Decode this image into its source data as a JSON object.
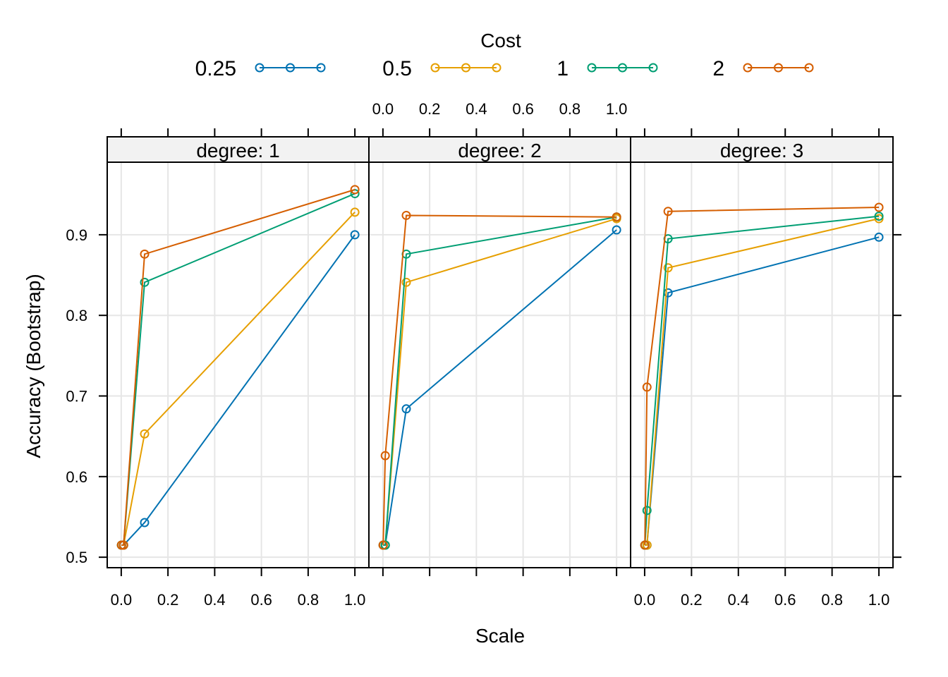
{
  "chart_data": {
    "type": "line",
    "legend": {
      "title": "Cost",
      "position": "top",
      "entries": [
        {
          "label": "0.25",
          "color": "#0072B2"
        },
        {
          "label": "0.5",
          "color": "#E69F00"
        },
        {
          "label": "1",
          "color": "#009E73"
        },
        {
          "label": "2",
          "color": "#D55E00"
        }
      ]
    },
    "xlabel": "Scale",
    "ylabel": "Accuracy (Bootstrap)",
    "xlim": [
      -0.06,
      1.06
    ],
    "ylim": [
      0.487,
      0.99
    ],
    "x_ticks": [
      "0.0",
      "0.2",
      "0.4",
      "0.6",
      "0.8",
      "1.0"
    ],
    "y_ticks": [
      "0.5",
      "0.6",
      "0.7",
      "0.8",
      "0.9"
    ],
    "grid": true,
    "panels": [
      {
        "strip": "degree: 1",
        "series": [
          {
            "name": "0.25",
            "x": [
              0.001,
              0.01,
              0.1,
              1.0
            ],
            "y": [
              0.515,
              0.515,
              0.543,
              0.9
            ]
          },
          {
            "name": "0.5",
            "x": [
              0.001,
              0.01,
              0.1,
              1.0
            ],
            "y": [
              0.515,
              0.515,
              0.653,
              0.928
            ]
          },
          {
            "name": "1",
            "x": [
              0.001,
              0.01,
              0.1,
              1.0
            ],
            "y": [
              0.515,
              0.515,
              0.841,
              0.951
            ]
          },
          {
            "name": "2",
            "x": [
              0.001,
              0.01,
              0.1,
              1.0
            ],
            "y": [
              0.515,
              0.515,
              0.876,
              0.956
            ]
          }
        ]
      },
      {
        "strip": "degree: 2",
        "series": [
          {
            "name": "0.25",
            "x": [
              0.001,
              0.01,
              0.1,
              1.0
            ],
            "y": [
              0.515,
              0.515,
              0.684,
              0.906
            ]
          },
          {
            "name": "0.5",
            "x": [
              0.001,
              0.01,
              0.1,
              1.0
            ],
            "y": [
              0.515,
              0.515,
              0.841,
              0.92
            ]
          },
          {
            "name": "1",
            "x": [
              0.001,
              0.01,
              0.1,
              1.0
            ],
            "y": [
              0.515,
              0.515,
              0.876,
              0.922
            ]
          },
          {
            "name": "2",
            "x": [
              0.001,
              0.01,
              0.1,
              1.0
            ],
            "y": [
              0.515,
              0.626,
              0.924,
              0.922
            ]
          }
        ]
      },
      {
        "strip": "degree: 3",
        "series": [
          {
            "name": "0.25",
            "x": [
              0.001,
              0.01,
              0.1,
              1.0
            ],
            "y": [
              0.515,
              0.515,
              0.828,
              0.897
            ]
          },
          {
            "name": "0.5",
            "x": [
              0.001,
              0.01,
              0.1,
              1.0
            ],
            "y": [
              0.515,
              0.515,
              0.859,
              0.92
            ]
          },
          {
            "name": "1",
            "x": [
              0.001,
              0.01,
              0.1,
              1.0
            ],
            "y": [
              0.515,
              0.558,
              0.895,
              0.923
            ]
          },
          {
            "name": "2",
            "x": [
              0.001,
              0.01,
              0.1,
              1.0
            ],
            "y": [
              0.515,
              0.711,
              0.929,
              0.934
            ]
          }
        ]
      }
    ]
  }
}
